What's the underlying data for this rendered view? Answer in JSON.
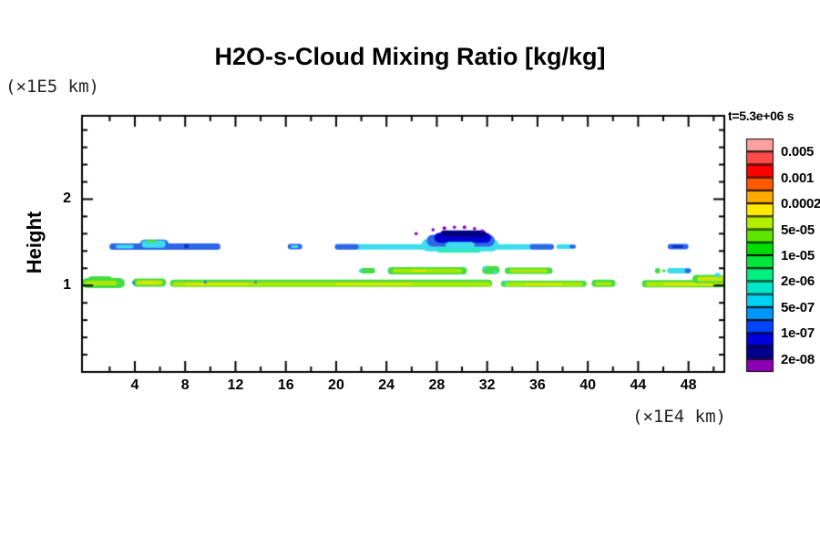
{
  "title": "H2O-s-Cloud Mixing Ratio [kg/kg]",
  "axes": {
    "y_unit": "(×1E5 km)",
    "x_unit": "(×1E4 km)",
    "y_label": "Height",
    "x_major_ticks": [
      4,
      8,
      12,
      16,
      20,
      24,
      28,
      32,
      36,
      40,
      44,
      48
    ],
    "x_minor_step": 2,
    "y_major_ticks": [
      1,
      2
    ],
    "y_minor_step": 0.2,
    "x_range": [
      -0.2,
      50.85
    ],
    "y_range": [
      0,
      2.965
    ]
  },
  "colorbar": {
    "title": "t=5.3e+06 s",
    "colors": [
      "#FFA0A0",
      "#FF4B4B",
      "#FF0000",
      "#FF5A00",
      "#FFAA00",
      "#FFE900",
      "#B4EE00",
      "#5CE600",
      "#00DC00",
      "#00E63C",
      "#00EE82",
      "#00E8C8",
      "#00D2F0",
      "#0096FA",
      "#0046FF",
      "#0000DC",
      "#00008C",
      "#8C00B4"
    ],
    "labels": [
      "0.005",
      "0.001",
      "0.0002",
      "5e-05",
      "1e-05",
      "2e-06",
      "5e-07",
      "1e-07",
      "2e-08"
    ],
    "label_after_box": [
      1,
      3,
      5,
      7,
      9,
      11,
      13,
      15,
      17
    ]
  },
  "chart_data": {
    "type": "heatmap",
    "title": "H2O-s-Cloud Mixing Ratio [kg/kg]",
    "xlabel": "(×1E4 km)",
    "ylabel": "Height (×1E5 km)",
    "time_annotation": "t=5.3e+06 s",
    "x_range_shown": [
      0,
      51
    ],
    "y_range_shown": [
      0,
      2.965
    ],
    "value_units": "kg/kg",
    "value_scale": "log colorbar, boundaries 2e-08 (purple, low) to 0.005 (pink, high)",
    "layers": [
      {
        "height": 1.45,
        "x_extent": [
          [
            2,
            10.8
          ],
          [
            16.2,
            17.3
          ],
          [
            19.9,
            37.3
          ],
          [
            37.5,
            39
          ],
          [
            46.4,
            48
          ]
        ],
        "values": "blue/cyan band ~1e-07 to 2e-06; dense core at x 27-32 down below 2e-08 (navy/purple cap)"
      },
      {
        "height": 1.17,
        "x_extent": [
          [
            21.9,
            23.1
          ],
          [
            24.1,
            30.4
          ],
          [
            31.6,
            33
          ],
          [
            33.4,
            37.2
          ],
          [
            45.3,
            48.2
          ]
        ],
        "values": "green/chartreuse ~1e-05 to 1e-04 with cyan patches"
      },
      {
        "height": 1.02,
        "x_extent": [
          [
            0,
            6.5
          ],
          [
            6.8,
            32.4
          ],
          [
            33.1,
            39.9
          ],
          [
            40.3,
            42.2
          ],
          [
            44.3,
            50.8
          ]
        ],
        "values": "near-continuous chartreuse band with yellow core ~5e-05 to 2e-04, green rim"
      }
    ],
    "clouds": [
      {
        "k": "c",
        "x0": 1.98,
        "x1": 10.8,
        "h": 1.45,
        "th": 7,
        "c": "#2E66E8"
      },
      {
        "k": "c",
        "x0": 2.5,
        "x1": 3.9,
        "h": 1.45,
        "th": 4,
        "c": "#3CDCEE"
      },
      {
        "k": "c",
        "x0": 4.4,
        "x1": 6.7,
        "h": 1.475,
        "th": 11,
        "c": "#2E66E8"
      },
      {
        "k": "c",
        "x0": 4.55,
        "x1": 6.45,
        "h": 1.48,
        "th": 8,
        "c": "#3CDCEE"
      },
      {
        "k": "c",
        "x0": 4.9,
        "x1": 5.7,
        "h": 1.515,
        "th": 3,
        "c": "#44DC44"
      },
      {
        "k": "d",
        "x": 8.1,
        "h": 1.455,
        "r": 2.5,
        "c": "#1030C8"
      },
      {
        "k": "c",
        "x0": 16.15,
        "x1": 17.3,
        "h": 1.45,
        "th": 6,
        "c": "#2E66E8"
      },
      {
        "k": "c",
        "x0": 16.4,
        "x1": 17.0,
        "h": 1.45,
        "th": 3,
        "c": "#3CDCEE"
      },
      {
        "k": "c",
        "x0": 19.9,
        "x1": 37.3,
        "h": 1.447,
        "th": 6,
        "c": "#3CDCEE"
      },
      {
        "k": "c",
        "x0": 19.9,
        "x1": 21.8,
        "h": 1.447,
        "th": 6,
        "c": "#2E66E8"
      },
      {
        "k": "c",
        "x0": 35.4,
        "x1": 37.3,
        "h": 1.447,
        "th": 6,
        "c": "#2E66E8"
      },
      {
        "k": "c",
        "x0": 26.8,
        "x1": 32.9,
        "h": 1.47,
        "th": 14,
        "c": "#3CDCEE"
      },
      {
        "k": "c",
        "x0": 27.2,
        "x1": 32.6,
        "h": 1.52,
        "th": 13,
        "c": "#2E66E8"
      },
      {
        "k": "c",
        "x0": 27.8,
        "x1": 32.3,
        "h": 1.555,
        "th": 11,
        "c": "#0000D2"
      },
      {
        "k": "c",
        "x0": 28.3,
        "x1": 31.9,
        "h": 1.6,
        "th": 7,
        "c": "#000082"
      },
      {
        "k": "c",
        "x0": 28.0,
        "x1": 31.5,
        "h": 1.41,
        "th": 6,
        "c": "#2FE8C0"
      },
      {
        "k": "c",
        "x0": 28.7,
        "x1": 31.0,
        "h": 1.465,
        "th": 8,
        "c": "#3CDCEE"
      },
      {
        "k": "d",
        "x": 26.35,
        "h": 1.6,
        "r": 1.8,
        "c": "#8C00B4"
      },
      {
        "k": "d",
        "x": 27.7,
        "h": 1.645,
        "r": 1.8,
        "c": "#8C00B4"
      },
      {
        "k": "d",
        "x": 28.6,
        "h": 1.665,
        "r": 2.0,
        "c": "#8C00B4"
      },
      {
        "k": "d",
        "x": 29.4,
        "h": 1.675,
        "r": 1.8,
        "c": "#8C00B4"
      },
      {
        "k": "d",
        "x": 30.2,
        "h": 1.675,
        "r": 2.0,
        "c": "#8C00B4"
      },
      {
        "k": "d",
        "x": 31.0,
        "h": 1.66,
        "r": 1.8,
        "c": "#8C00B4"
      },
      {
        "k": "d",
        "x": 31.6,
        "h": 1.635,
        "r": 1.6,
        "c": "#8C00B4"
      },
      {
        "k": "c",
        "x0": 37.5,
        "x1": 39.0,
        "h": 1.45,
        "th": 5,
        "c": "#3CDCEE"
      },
      {
        "k": "c",
        "x0": 38.55,
        "x1": 39.05,
        "h": 1.45,
        "th": 4,
        "c": "#2E66E8"
      },
      {
        "k": "c",
        "x0": 46.35,
        "x1": 48.0,
        "h": 1.452,
        "th": 6,
        "c": "#2E66E8"
      },
      {
        "k": "c",
        "x0": 46.7,
        "x1": 47.6,
        "h": 1.452,
        "th": 3,
        "c": "#1030C8"
      },
      {
        "k": "c",
        "x0": 21.9,
        "x1": 23.1,
        "h": 1.17,
        "th": 6,
        "c": "#44DC44"
      },
      {
        "k": "d",
        "x": 21.95,
        "h": 1.17,
        "r": 2.2,
        "c": "#3CDCEE"
      },
      {
        "k": "c",
        "x0": 24.1,
        "x1": 30.4,
        "h": 1.17,
        "th": 8,
        "c": "#44DC44"
      },
      {
        "k": "c",
        "x0": 24.5,
        "x1": 30.0,
        "h": 1.17,
        "th": 4.5,
        "c": "#AAE800"
      },
      {
        "k": "c",
        "x0": 26.0,
        "x1": 27.2,
        "h": 1.17,
        "th": 2,
        "c": "#E6E600"
      },
      {
        "k": "c",
        "x0": 31.6,
        "x1": 33.0,
        "h": 1.18,
        "th": 9,
        "c": "#44DC44"
      },
      {
        "k": "d",
        "x": 31.8,
        "h": 1.205,
        "r": 2,
        "c": "#3CDCEE"
      },
      {
        "k": "d",
        "x": 32.6,
        "h": 1.155,
        "r": 2,
        "c": "#3CDCEE"
      },
      {
        "k": "c",
        "x0": 33.4,
        "x1": 37.2,
        "h": 1.17,
        "th": 7,
        "c": "#44DC44"
      },
      {
        "k": "c",
        "x0": 33.8,
        "x1": 36.8,
        "h": 1.17,
        "th": 4,
        "c": "#AAE800"
      },
      {
        "k": "d",
        "x": 45.55,
        "h": 1.17,
        "r": 3,
        "c": "#44DC44"
      },
      {
        "k": "d",
        "x": 46.05,
        "h": 1.17,
        "r": 1.8,
        "c": "#44DC44"
      },
      {
        "k": "c",
        "x0": 46.3,
        "x1": 48.2,
        "h": 1.17,
        "th": 6,
        "c": "#3CDCEE"
      },
      {
        "k": "c",
        "x0": 47.7,
        "x1": 48.2,
        "h": 1.17,
        "th": 5,
        "c": "#2E66E8"
      },
      {
        "k": "c",
        "x0": -0.2,
        "x1": 3.2,
        "h": 1.03,
        "th": 11,
        "c": "#44DC44"
      },
      {
        "k": "c",
        "x0": 0.3,
        "x1": 2.2,
        "h": 1.065,
        "th": 8,
        "c": "#44DC44"
      },
      {
        "k": "c",
        "x0": 0.0,
        "x1": 2.6,
        "h": 1.03,
        "th": 5,
        "c": "#AAE800"
      },
      {
        "k": "c",
        "x0": 3.8,
        "x1": 6.5,
        "h": 1.035,
        "th": 9,
        "c": "#44DC44"
      },
      {
        "k": "c",
        "x0": 4.1,
        "x1": 6.2,
        "h": 1.035,
        "th": 5,
        "c": "#C8E800"
      },
      {
        "k": "c",
        "x0": 4.6,
        "x1": 5.7,
        "h": 1.035,
        "th": 2.5,
        "c": "#E6E600"
      },
      {
        "k": "d",
        "x": 3.9,
        "h": 1.035,
        "r": 1.5,
        "c": "#2E66E8"
      },
      {
        "k": "c",
        "x0": 6.8,
        "x1": 32.4,
        "h": 1.025,
        "th": 8,
        "c": "#44DC44"
      },
      {
        "k": "c",
        "x0": 7.0,
        "x1": 32.3,
        "h": 1.015,
        "th": 5,
        "c": "#AAE800"
      },
      {
        "k": "c",
        "x0": 8.0,
        "x1": 13.0,
        "h": 1.018,
        "th": 2,
        "c": "#E6E600"
      },
      {
        "k": "c",
        "x0": 20.0,
        "x1": 26.0,
        "h": 1.018,
        "th": 2,
        "c": "#E6E600"
      },
      {
        "k": "d",
        "x": 9.6,
        "h": 1.04,
        "r": 1.5,
        "c": "#2E66E8"
      },
      {
        "k": "d",
        "x": 13.6,
        "h": 1.04,
        "r": 1.3,
        "c": "#2E66E8"
      },
      {
        "k": "c",
        "x0": 33.1,
        "x1": 39.9,
        "h": 1.02,
        "th": 7,
        "c": "#44DC44"
      },
      {
        "k": "c",
        "x0": 33.4,
        "x1": 39.6,
        "h": 1.015,
        "th": 4.5,
        "c": "#AAE800"
      },
      {
        "k": "d",
        "x": 33.5,
        "h": 1.035,
        "r": 2,
        "c": "#3CDCEE"
      },
      {
        "k": "c",
        "x0": 35.0,
        "x1": 38.0,
        "h": 1.015,
        "th": 2,
        "c": "#E6E600"
      },
      {
        "k": "c",
        "x0": 40.3,
        "x1": 42.2,
        "h": 1.025,
        "th": 8,
        "c": "#44DC44"
      },
      {
        "k": "c",
        "x0": 40.6,
        "x1": 41.9,
        "h": 1.02,
        "th": 4,
        "c": "#AAE800"
      },
      {
        "k": "c",
        "x0": 44.3,
        "x1": 50.85,
        "h": 1.02,
        "th": 8,
        "c": "#44DC44"
      },
      {
        "k": "c",
        "x0": 44.6,
        "x1": 50.85,
        "h": 1.015,
        "th": 5,
        "c": "#AAE800"
      },
      {
        "k": "c",
        "x0": 46.0,
        "x1": 50.3,
        "h": 1.015,
        "th": 2.5,
        "c": "#E6E600"
      },
      {
        "k": "c",
        "x0": 48.3,
        "x1": 50.85,
        "h": 1.075,
        "th": 9,
        "c": "#44DC44"
      },
      {
        "k": "c",
        "x0": 48.7,
        "x1": 50.85,
        "h": 1.075,
        "th": 5,
        "c": "#C8E800"
      },
      {
        "k": "d",
        "x": 50.3,
        "h": 1.125,
        "r": 2.5,
        "c": "#3CDCEE"
      }
    ]
  }
}
